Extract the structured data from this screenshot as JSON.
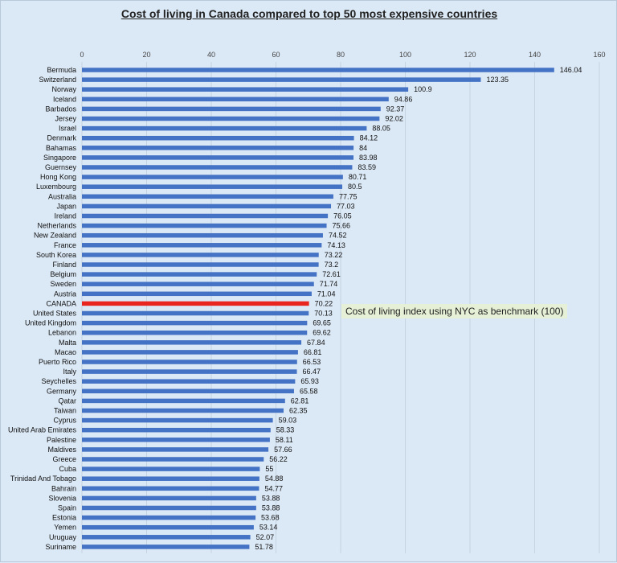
{
  "chart_data": {
    "type": "bar",
    "orientation": "horizontal",
    "title": "Cost of living in Canada compared to top 50 most expensive countries",
    "annotation": "Cost of living index using NYC as benchmark (100)",
    "xlim": [
      0,
      160
    ],
    "x_ticks": [
      0,
      20,
      40,
      60,
      80,
      100,
      120,
      140,
      160
    ],
    "grid": "vertical",
    "bar_color": "#4472c4",
    "highlight_color": "#e8251f",
    "highlight_category": "CANADA",
    "categories": [
      "Bermuda",
      "Switzerland",
      "Norway",
      "Iceland",
      "Barbados",
      "Jersey",
      "Israel",
      "Denmark",
      "Bahamas",
      "Singapore",
      "Guernsey",
      "Hong Kong",
      "Luxembourg",
      "Australia",
      "Japan",
      "Ireland",
      "Netherlands",
      "New Zealand",
      "France",
      "South Korea",
      "Finland",
      "Belgium",
      "Sweden",
      "Austria",
      "CANADA",
      "United States",
      "United Kingdom",
      "Lebanon",
      "Malta",
      "Macao",
      "Puerto Rico",
      "Italy",
      "Seychelles",
      "Germany",
      "Qatar",
      "Taiwan",
      "Cyprus",
      "United Arab Emirates",
      "Palestine",
      "Maldives",
      "Greece",
      "Cuba",
      "Trinidad And Tobago",
      "Bahrain",
      "Slovenia",
      "Spain",
      "Estonia",
      "Yemen",
      "Uruguay",
      "Suriname"
    ],
    "values": [
      146.04,
      123.35,
      100.9,
      94.86,
      92.37,
      92.02,
      88.05,
      84.12,
      84,
      83.98,
      83.59,
      80.71,
      80.5,
      77.75,
      77.03,
      76.05,
      75.66,
      74.52,
      74.13,
      73.22,
      73.2,
      72.61,
      71.74,
      71.04,
      70.22,
      70.13,
      69.65,
      69.62,
      67.84,
      66.81,
      66.53,
      66.47,
      65.93,
      65.58,
      62.81,
      62.35,
      59.03,
      58.33,
      58.11,
      57.66,
      56.22,
      55,
      54.88,
      54.77,
      53.88,
      53.88,
      53.68,
      53.14,
      52.07,
      51.78
    ]
  }
}
